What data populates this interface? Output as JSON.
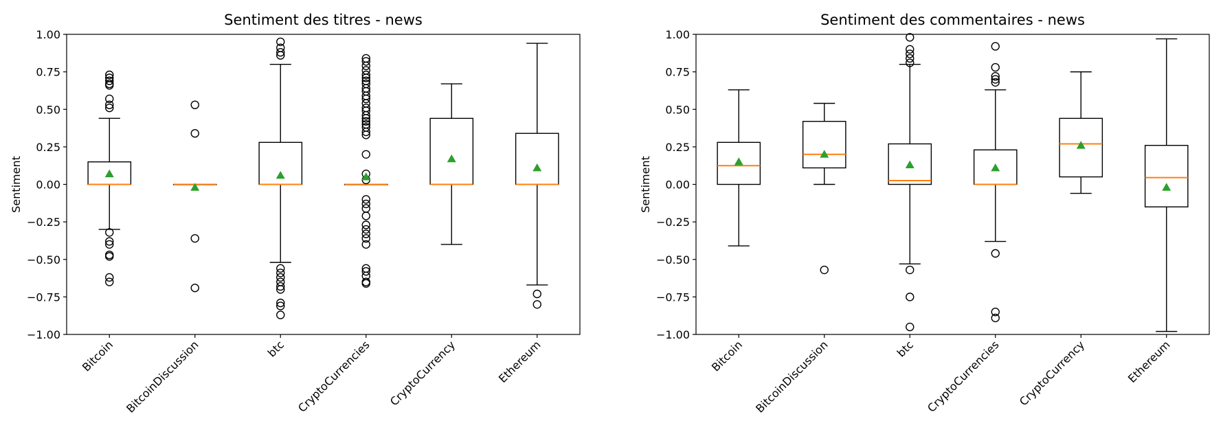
{
  "chart_data": [
    {
      "type": "boxplot",
      "title": "Sentiment des titres - news",
      "xlabel": "",
      "ylabel": "Sentiment",
      "ylim": [
        -1.0,
        1.0
      ],
      "yticks": [
        "1.00",
        "0.75",
        "0.50",
        "0.25",
        "0.00",
        "−0.25",
        "−0.50",
        "−0.75",
        "−1.00"
      ],
      "categories": [
        "Bitcoin",
        "BitcoinDiscussion",
        "btc",
        "CryptoCurrencies",
        "CryptoCurrency",
        "Ethereum"
      ],
      "grid": false,
      "colors": {
        "box": "#000000",
        "median": "#ff7f0e",
        "mean": "#2ca02c"
      },
      "boxes": [
        {
          "q1": 0.0,
          "median": 0.0,
          "q3": 0.15,
          "whislo": -0.3,
          "whishi": 0.44,
          "mean": 0.07,
          "fliers": [
            0.73,
            0.71,
            0.69,
            0.67,
            0.66,
            0.57,
            0.53,
            0.51,
            -0.32,
            -0.38,
            -0.4,
            -0.47,
            -0.48,
            -0.62,
            -0.65
          ]
        },
        {
          "q1": 0.0,
          "median": 0.0,
          "q3": 0.0,
          "whislo": 0.0,
          "whishi": 0.0,
          "mean": -0.02,
          "fliers": [
            0.53,
            0.34,
            -0.36,
            -0.69
          ]
        },
        {
          "q1": 0.0,
          "median": 0.0,
          "q3": 0.28,
          "whislo": -0.52,
          "whishi": 0.8,
          "mean": 0.06,
          "fliers": [
            0.95,
            0.91,
            0.88,
            0.86,
            -0.56,
            -0.59,
            -0.62,
            -0.65,
            -0.68,
            -0.7,
            -0.79,
            -0.81,
            -0.87
          ]
        },
        {
          "q1": 0.0,
          "median": 0.0,
          "q3": 0.0,
          "whislo": 0.0,
          "whishi": 0.0,
          "mean": 0.05,
          "fliers": [
            0.84,
            0.82,
            0.79,
            0.76,
            0.73,
            0.71,
            0.69,
            0.67,
            0.64,
            0.62,
            0.59,
            0.57,
            0.54,
            0.51,
            0.49,
            0.46,
            0.44,
            0.42,
            0.4,
            0.38,
            0.35,
            0.33,
            0.2,
            0.07,
            0.03,
            -0.1,
            -0.13,
            -0.16,
            -0.21,
            -0.27,
            -0.3,
            -0.33,
            -0.36,
            -0.4,
            -0.56,
            -0.58,
            -0.61,
            -0.65,
            -0.66
          ]
        },
        {
          "q1": 0.0,
          "median": 0.0,
          "q3": 0.44,
          "whislo": -0.4,
          "whishi": 0.67,
          "mean": 0.17,
          "fliers": []
        },
        {
          "q1": 0.0,
          "median": 0.0,
          "q3": 0.34,
          "whislo": -0.67,
          "whishi": 0.94,
          "mean": 0.11,
          "fliers": [
            -0.73,
            -0.8
          ]
        }
      ]
    },
    {
      "type": "boxplot",
      "title": "Sentiment des commentaires - news",
      "xlabel": "",
      "ylabel": "Sentiment",
      "ylim": [
        -1.0,
        1.0
      ],
      "yticks": [
        "1.00",
        "0.75",
        "0.50",
        "0.25",
        "0.00",
        "−0.25",
        "−0.50",
        "−0.75",
        "−1.00"
      ],
      "categories": [
        "Bitcoin",
        "BitcoinDiscussion",
        "btc",
        "CryptoCurrencies",
        "CryptoCurrency",
        "Ethereum"
      ],
      "grid": false,
      "colors": {
        "box": "#000000",
        "median": "#ff7f0e",
        "mean": "#2ca02c"
      },
      "boxes": [
        {
          "q1": 0.0,
          "median": 0.125,
          "q3": 0.28,
          "whislo": -0.41,
          "whishi": 0.63,
          "mean": 0.15,
          "fliers": []
        },
        {
          "q1": 0.11,
          "median": 0.2,
          "q3": 0.42,
          "whislo": 0.0,
          "whishi": 0.54,
          "mean": 0.2,
          "fliers": [
            -0.57
          ]
        },
        {
          "q1": 0.0,
          "median": 0.025,
          "q3": 0.27,
          "whislo": -0.53,
          "whishi": 0.8,
          "mean": 0.13,
          "fliers": [
            0.98,
            0.9,
            0.87,
            0.84,
            0.81,
            -0.57,
            -0.75,
            -0.95
          ]
        },
        {
          "q1": 0.0,
          "median": 0.0,
          "q3": 0.23,
          "whislo": -0.38,
          "whishi": 0.63,
          "mean": 0.11,
          "fliers": [
            0.92,
            0.78,
            0.72,
            0.7,
            0.68,
            -0.46,
            -0.85,
            -0.89
          ]
        },
        {
          "q1": 0.05,
          "median": 0.27,
          "q3": 0.44,
          "whislo": -0.06,
          "whishi": 0.75,
          "mean": 0.26,
          "fliers": []
        },
        {
          "q1": -0.15,
          "median": 0.045,
          "q3": 0.26,
          "whislo": -0.98,
          "whishi": 0.97,
          "mean": -0.02,
          "fliers": []
        }
      ]
    }
  ]
}
